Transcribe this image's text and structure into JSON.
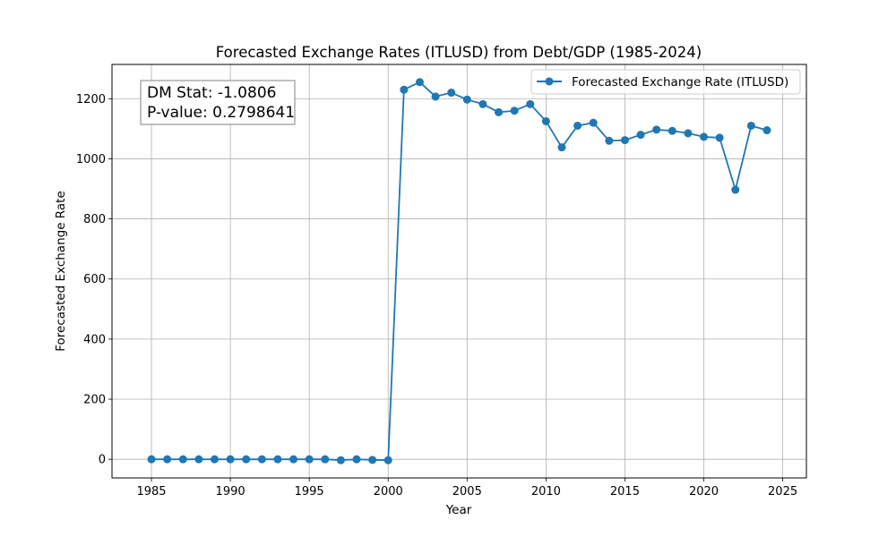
{
  "chart_data": {
    "type": "line",
    "title": "Forecasted Exchange Rates (ITLUSD) from Debt/GDP (1985-2024)",
    "xlabel": "Year",
    "ylabel": "Forecasted Exchange Rate",
    "xlim": [
      1982.5,
      2026.5
    ],
    "ylim": [
      -62,
      1314
    ],
    "x_ticks": [
      1985,
      1990,
      1995,
      2000,
      2005,
      2010,
      2015,
      2020,
      2025
    ],
    "y_ticks": [
      0,
      200,
      400,
      600,
      800,
      1000,
      1200
    ],
    "grid": true,
    "legend_position": "top-right",
    "series": [
      {
        "name": "Forecasted Exchange Rate (ITLUSD)",
        "color": "#1f77b4",
        "marker": "circle",
        "x": [
          1985,
          1986,
          1987,
          1988,
          1989,
          1990,
          1991,
          1992,
          1993,
          1994,
          1995,
          1996,
          1997,
          1998,
          1999,
          2000,
          2001,
          2002,
          2003,
          2004,
          2005,
          2006,
          2007,
          2008,
          2009,
          2010,
          2011,
          2012,
          2013,
          2014,
          2015,
          2016,
          2017,
          2018,
          2019,
          2020,
          2021,
          2022,
          2023,
          2024
        ],
        "y": [
          0,
          0,
          0,
          0,
          0,
          0,
          0,
          0,
          0,
          0,
          0,
          0,
          -3,
          0,
          -2,
          -3,
          1230,
          1255,
          1207,
          1220,
          1197,
          1182,
          1155,
          1160,
          1182,
          1125,
          1038,
          1110,
          1120,
          1060,
          1062,
          1080,
          1097,
          1093,
          1085,
          1073,
          1070,
          897,
          1110,
          1095
        ]
      }
    ],
    "annotation": {
      "lines": [
        "DM Stat: -1.0806",
        "P-value: 0.2798641"
      ],
      "position": "top-left"
    }
  }
}
